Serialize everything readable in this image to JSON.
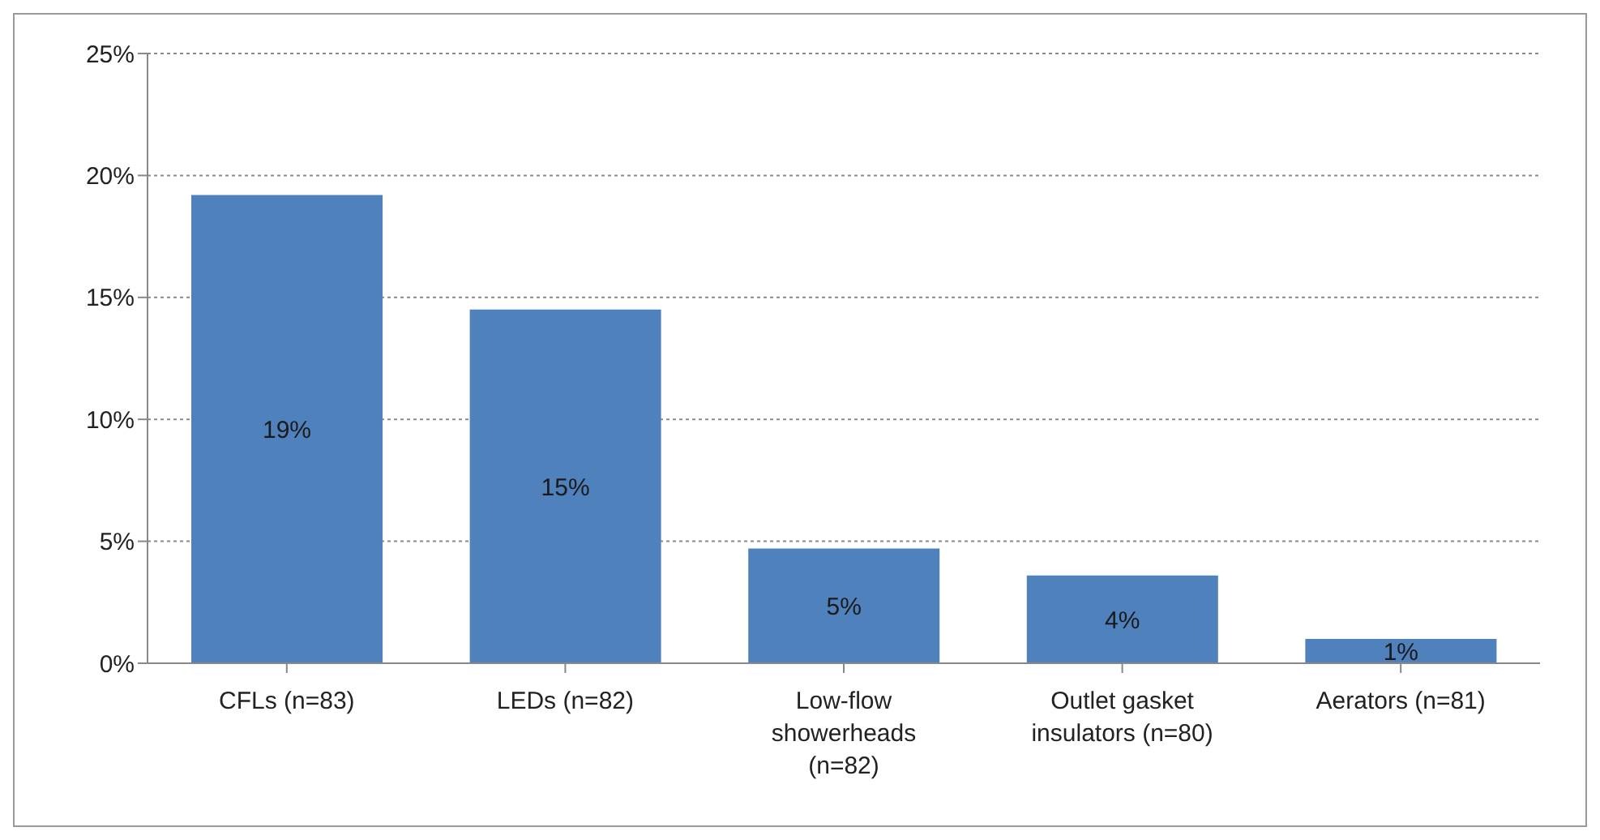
{
  "chart_data": {
    "type": "bar",
    "categories": [
      "CFLs (n=83)",
      "LEDs (n=82)",
      "Low-flow showerheads (n=82)",
      "Outlet gasket insulators (n=80)",
      "Aerators (n=81)"
    ],
    "values": [
      19.2,
      14.5,
      4.7,
      3.6,
      1.0
    ],
    "value_labels": [
      "19%",
      "15%",
      "5%",
      "4%",
      "1%"
    ],
    "color": "#4f81bd",
    "ylim": [
      0,
      25
    ],
    "yticks": [
      {
        "value": 0,
        "label": "0%"
      },
      {
        "value": 5,
        "label": "5%"
      },
      {
        "value": 10,
        "label": "10%"
      },
      {
        "value": 15,
        "label": "15%"
      },
      {
        "value": 20,
        "label": "20%"
      },
      {
        "value": 25,
        "label": "25%"
      }
    ],
    "grid": "y",
    "legend": false
  }
}
